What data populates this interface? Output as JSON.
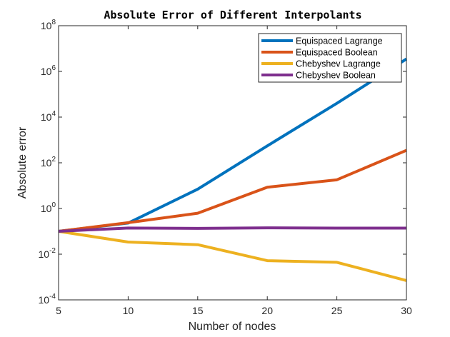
{
  "chart_data": {
    "type": "line",
    "title": "Absolute Error of Different Interpolants",
    "xlabel": "Number of nodes",
    "ylabel": "Absolute error",
    "x": [
      5,
      10,
      15,
      20,
      25,
      30
    ],
    "xlim": [
      5,
      30
    ],
    "ylim": [
      0.0001,
      100000000
    ],
    "yscale": "log",
    "grid": false,
    "legend_position": "top-right",
    "x_ticks": [
      "5",
      "10",
      "15",
      "20",
      "25",
      "30"
    ],
    "y_ticks": [
      {
        "base": "10",
        "exp": "-4",
        "value": 0.0001
      },
      {
        "base": "10",
        "exp": "-2",
        "value": 0.01
      },
      {
        "base": "10",
        "exp": "0",
        "value": 1
      },
      {
        "base": "10",
        "exp": "2",
        "value": 100
      },
      {
        "base": "10",
        "exp": "4",
        "value": 10000
      },
      {
        "base": "10",
        "exp": "6",
        "value": 1000000
      },
      {
        "base": "10",
        "exp": "8",
        "value": 100000000
      }
    ],
    "series": [
      {
        "name": "Equispaced Lagrange",
        "color": "#0072BD",
        "values": [
          0.1,
          0.23,
          7,
          550,
          40000,
          3500000
        ]
      },
      {
        "name": "Equispaced Boolean",
        "color": "#D95319",
        "values": [
          0.1,
          0.24,
          0.62,
          8.5,
          18,
          350
        ]
      },
      {
        "name": "Chebyshev Lagrange",
        "color": "#EDB120",
        "values": [
          0.1,
          0.034,
          0.026,
          0.0052,
          0.0044,
          0.0007
        ]
      },
      {
        "name": "Chebyshev Boolean",
        "color": "#7E2F8E",
        "values": [
          0.1,
          0.14,
          0.135,
          0.142,
          0.138,
          0.138
        ]
      }
    ]
  }
}
